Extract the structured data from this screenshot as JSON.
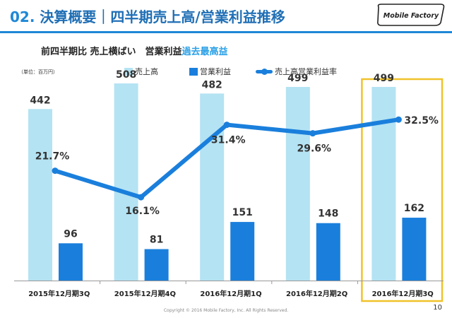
{
  "header": {
    "number": "02.",
    "title": "決算概要｜四半期売上高/営業利益推移",
    "logo_text": "Mobile Factory"
  },
  "subtitle": {
    "prefix": "前四半期比 売上横ばい　営業利益",
    "highlight": "過去最高益"
  },
  "unit_label": "（単位：百万円）",
  "legend": {
    "sales": "売上高",
    "profit": "営業利益",
    "margin": "売上高営業利益率"
  },
  "footer": {
    "copyright": "Copyright © 2016 Mobile Factory, Inc. All Rights Reserved.",
    "page": "10"
  },
  "highlighted_category": "2016年12月期3Q",
  "colors": {
    "sales": "#b4e3f3",
    "profit": "#1a7fdc",
    "margin_line": "#1a7fdc",
    "highlight_box": "#f0c22b",
    "title": "#1f6fb5",
    "highlight_text": "#2aa0e6"
  },
  "chart_data": {
    "type": "bar",
    "categories": [
      "2015年12月期3Q",
      "2015年12月期4Q",
      "2016年12月期1Q",
      "2016年12月期2Q",
      "2016年12月期3Q"
    ],
    "series": [
      {
        "name": "売上高",
        "type": "bar",
        "values": [
          442,
          508,
          482,
          499,
          499
        ],
        "labels": [
          "442",
          "508",
          "482",
          "499",
          "499"
        ]
      },
      {
        "name": "営業利益",
        "type": "bar",
        "values": [
          96,
          81,
          151,
          148,
          162
        ],
        "labels": [
          "96",
          "81",
          "151",
          "148",
          "162"
        ]
      },
      {
        "name": "売上高営業利益率",
        "type": "line",
        "unit": "%",
        "values": [
          21.7,
          16.1,
          31.4,
          29.6,
          32.5
        ],
        "labels": [
          "21.7%",
          "16.1%",
          "31.4%",
          "29.6%",
          "32.5%"
        ]
      }
    ],
    "ylim": [
      0,
      550
    ],
    "y2lim": [
      0,
      40
    ],
    "grid": false,
    "legend_position": "top"
  }
}
